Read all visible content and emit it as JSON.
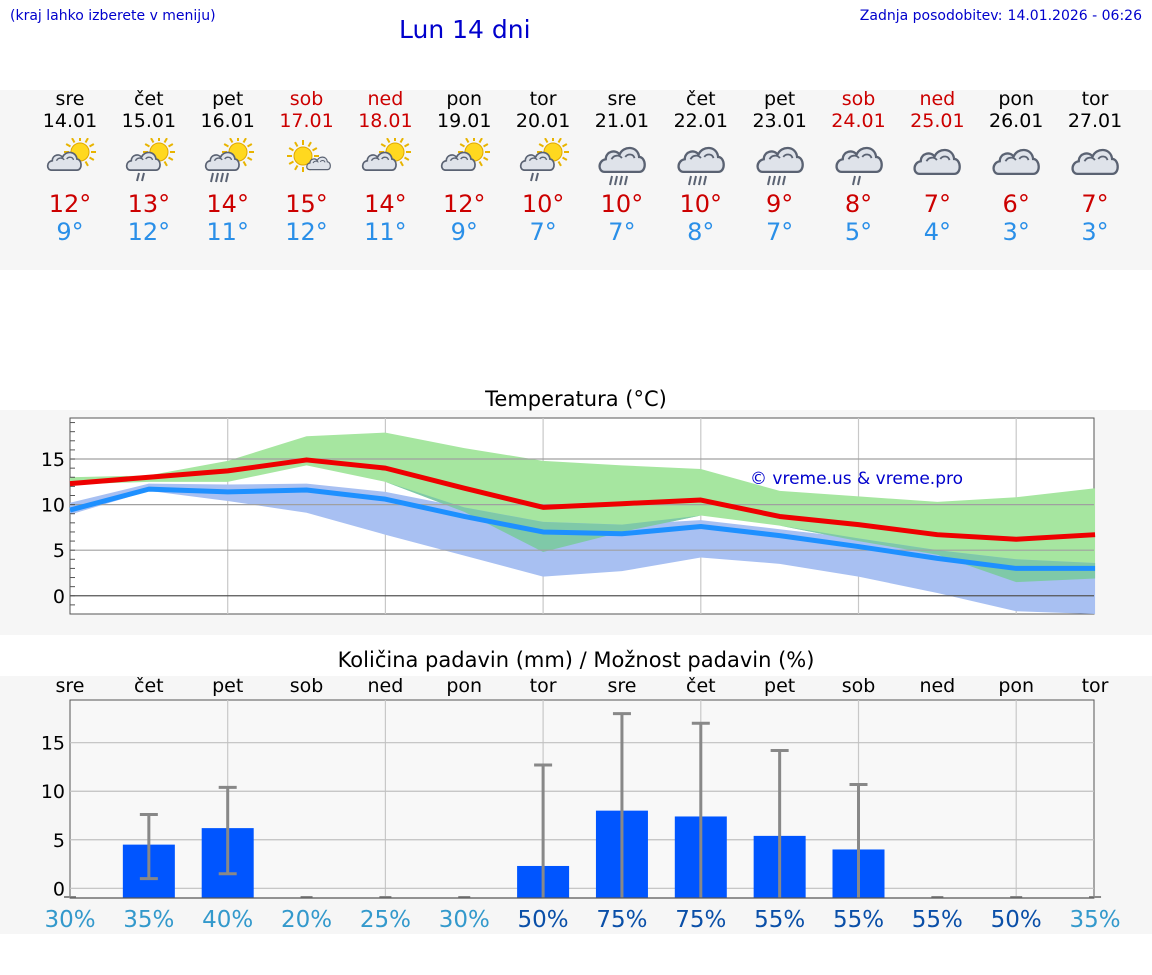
{
  "header": {
    "location_hint": "(kraj lahko izberete v meniju)",
    "title": "Lun 14 dni",
    "updated_label": "Zadnja posodobitev:",
    "updated_value": "14.01.2026 - 06:26"
  },
  "forecast": [
    {
      "day": "sre",
      "date": "14.01",
      "icon": "partly-cloudy-sun-icon",
      "tmax": "12°",
      "tmin": "9°",
      "weekend": false
    },
    {
      "day": "čet",
      "date": "15.01",
      "icon": "sun-cloud-light-rain-icon",
      "tmax": "13°",
      "tmin": "12°",
      "weekend": false
    },
    {
      "day": "pet",
      "date": "16.01",
      "icon": "sun-cloud-rain-icon",
      "tmax": "14°",
      "tmin": "11°",
      "weekend": false
    },
    {
      "day": "sob",
      "date": "17.01",
      "icon": "sun-small-cloud-icon",
      "tmax": "15°",
      "tmin": "12°",
      "weekend": true
    },
    {
      "day": "ned",
      "date": "18.01",
      "icon": "partly-cloudy-sun-icon",
      "tmax": "14°",
      "tmin": "11°",
      "weekend": true
    },
    {
      "day": "pon",
      "date": "19.01",
      "icon": "partly-cloudy-sun-icon",
      "tmax": "12°",
      "tmin": "9°",
      "weekend": false
    },
    {
      "day": "tor",
      "date": "20.01",
      "icon": "sun-cloud-light-rain-icon",
      "tmax": "10°",
      "tmin": "7°",
      "weekend": false
    },
    {
      "day": "sre",
      "date": "21.01",
      "icon": "cloud-rain-icon",
      "tmax": "10°",
      "tmin": "7°",
      "weekend": false
    },
    {
      "day": "čet",
      "date": "22.01",
      "icon": "cloud-rain-icon",
      "tmax": "10°",
      "tmin": "8°",
      "weekend": false
    },
    {
      "day": "pet",
      "date": "23.01",
      "icon": "cloud-rain-icon",
      "tmax": "9°",
      "tmin": "7°",
      "weekend": false
    },
    {
      "day": "sob",
      "date": "24.01",
      "icon": "cloud-light-rain-icon",
      "tmax": "8°",
      "tmin": "5°",
      "weekend": true
    },
    {
      "day": "ned",
      "date": "25.01",
      "icon": "cloud-icon",
      "tmax": "7°",
      "tmin": "4°",
      "weekend": true
    },
    {
      "day": "pon",
      "date": "26.01",
      "icon": "cloud-icon",
      "tmax": "6°",
      "tmin": "3°",
      "weekend": false
    },
    {
      "day": "tor",
      "date": "27.01",
      "icon": "cloud-icon",
      "tmax": "7°",
      "tmin": "3°",
      "weekend": false
    }
  ],
  "colors": {
    "max_line": "#ee0000",
    "min_line": "#1e90ff",
    "max_band": "#a6e6a0",
    "min_band": "#a8c0f2",
    "overlap_band": "#7fc9a8",
    "bar": "#0055ff",
    "whisker": "#888888",
    "prob_low": "#3399cc",
    "prob_high": "#0a4fa8"
  },
  "chart_data": [
    {
      "type": "line",
      "title": "Temperatura (°C)",
      "watermark": "© vreme.us & vreme.pro",
      "xlabel": "",
      "ylabel": "",
      "x": [
        "14.01",
        "15.01",
        "16.01",
        "17.01",
        "18.01",
        "19.01",
        "20.01",
        "21.01",
        "22.01",
        "23.01",
        "24.01",
        "25.01",
        "26.01",
        "27.01"
      ],
      "ylim": [
        -2,
        19.5
      ],
      "yticks": [
        0,
        5,
        10,
        15
      ],
      "grid": true,
      "series": [
        {
          "name": "max",
          "values": [
            12.3,
            13.0,
            13.7,
            14.9,
            14.0,
            11.8,
            9.7,
            10.1,
            10.5,
            8.7,
            7.8,
            6.7,
            6.2,
            6.7
          ]
        },
        {
          "name": "min",
          "values": [
            9.4,
            11.7,
            11.4,
            11.6,
            10.6,
            8.7,
            7.0,
            6.8,
            7.6,
            6.6,
            5.4,
            4.1,
            3.0,
            3.0
          ]
        },
        {
          "name": "max_upper",
          "values": [
            13.0,
            13.2,
            14.8,
            17.5,
            17.9,
            16.2,
            14.8,
            14.3,
            13.9,
            11.5,
            10.9,
            10.3,
            10.8,
            11.8
          ]
        },
        {
          "name": "max_lower",
          "values": [
            12.2,
            12.5,
            12.5,
            14.3,
            12.5,
            9.2,
            4.8,
            7.0,
            8.8,
            7.7,
            6.0,
            4.5,
            1.5,
            1.9
          ]
        },
        {
          "name": "min_upper",
          "values": [
            10.2,
            12.3,
            12.2,
            12.3,
            11.4,
            9.7,
            8.1,
            7.8,
            8.3,
            7.3,
            6.3,
            5.0,
            4.0,
            3.6
          ]
        },
        {
          "name": "min_lower",
          "values": [
            8.9,
            11.5,
            10.4,
            9.1,
            6.7,
            4.4,
            2.1,
            2.7,
            4.2,
            3.5,
            2.1,
            0.3,
            -1.7,
            -2.0
          ]
        }
      ]
    },
    {
      "type": "bar",
      "title": "Količina padavin (mm) / Možnost padavin (%)",
      "categories": [
        "sre",
        "čet",
        "pet",
        "sob",
        "ned",
        "pon",
        "tor",
        "sre",
        "čet",
        "pet",
        "sob",
        "ned",
        "pon",
        "tor"
      ],
      "values": [
        0,
        4.5,
        6.2,
        0,
        0,
        0,
        2.3,
        8.0,
        7.4,
        5.4,
        4.0,
        0,
        0,
        0
      ],
      "error_low": [
        0,
        1.0,
        1.5,
        0,
        0,
        0,
        0,
        0,
        0,
        0,
        0,
        0,
        0,
        0
      ],
      "error_high": [
        0,
        7.6,
        10.4,
        0,
        0,
        0,
        12.7,
        18.0,
        17.0,
        14.2,
        10.7,
        0,
        0,
        0
      ],
      "probability": [
        "30%",
        "35%",
        "40%",
        "20%",
        "25%",
        "30%",
        "50%",
        "75%",
        "75%",
        "55%",
        "55%",
        "55%",
        "50%",
        "35%"
      ],
      "ylim": [
        -1,
        19.4
      ],
      "yticks": [
        0,
        5,
        10,
        15
      ],
      "xlabel": "",
      "ylabel": "",
      "grid": true
    }
  ]
}
